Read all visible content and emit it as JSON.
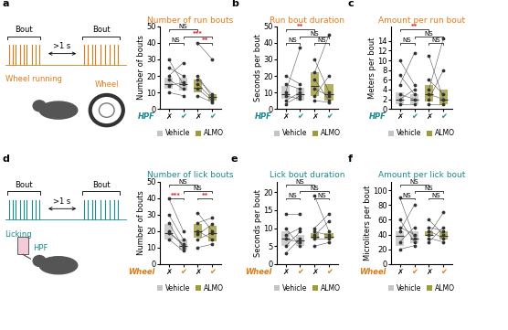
{
  "chart_data": [
    {
      "type": "box",
      "label": "a",
      "title": "Number of run bouts",
      "ylabel": "Number of bouts",
      "xlabel": "HPF",
      "categories": [
        "✗",
        "✔",
        "✗",
        "✔"
      ],
      "ylim": [
        0,
        50
      ],
      "yticks": [
        0,
        10,
        20,
        30,
        40,
        50
      ],
      "legend": "upper center",
      "series": [
        {
          "name": "Vehicle",
          "color": "#c4c4c4",
          "median": [
            15,
            15
          ],
          "q1": [
            12,
            11
          ],
          "q3": [
            19,
            19
          ],
          "pairs": [
            [
              25,
              20
            ],
            [
              30,
              15
            ],
            [
              18,
              12
            ],
            [
              14,
              16
            ],
            [
              10,
              8
            ],
            [
              20,
              28
            ]
          ]
        },
        {
          "name": "ALMO",
          "color": "#9e9b3a",
          "median": [
            13,
            7
          ],
          "q1": [
            10,
            5
          ],
          "q3": [
            18,
            9
          ],
          "pairs": [
            [
              40,
              30
            ],
            [
              20,
              7
            ],
            [
              15,
              6
            ],
            [
              12,
              5
            ],
            [
              8,
              4
            ],
            [
              18,
              9
            ]
          ]
        }
      ],
      "comparisons": [
        {
          "groups": [
            0,
            1
          ],
          "label": "NS"
        },
        {
          "groups": [
            2,
            3
          ],
          "label": "**"
        },
        {
          "groups": [
            1,
            3
          ],
          "label": "***"
        },
        {
          "groups": [
            0,
            2
          ],
          "label": "NS"
        }
      ],
      "schematic": {
        "bout": "Bout",
        "gap": ">1 s",
        "trace": "Wheel running",
        "icon": "Wheel"
      }
    },
    {
      "type": "box",
      "label": "b",
      "title": "Run bout duration",
      "ylabel": "Seconds per bout",
      "xlabel": "HPF",
      "categories": [
        "✗",
        "✔",
        "✗",
        "✔"
      ],
      "ylim": [
        0,
        50
      ],
      "yticks": [
        0,
        10,
        20,
        30,
        40,
        50
      ],
      "legend": "upper center",
      "series": [
        {
          "name": "Vehicle",
          "color": "#c4c4c4",
          "median": [
            9,
            9
          ],
          "q1": [
            6,
            5
          ],
          "q3": [
            14,
            13
          ],
          "pairs": [
            [
              5,
              10
            ],
            [
              10,
              37
            ],
            [
              15,
              12
            ],
            [
              8,
              6
            ],
            [
              20,
              15
            ],
            [
              3,
              8
            ]
          ]
        },
        {
          "name": "ALMO",
          "color": "#9e9b3a",
          "median": [
            14,
            9
          ],
          "q1": [
            8,
            5
          ],
          "q3": [
            22,
            15
          ],
          "pairs": [
            [
              22,
              45
            ],
            [
              30,
              10
            ],
            [
              12,
              8
            ],
            [
              8,
              20
            ],
            [
              18,
              5
            ],
            [
              5,
              4
            ]
          ]
        }
      ],
      "comparisons": [
        {
          "groups": [
            0,
            1
          ],
          "label": "NS"
        },
        {
          "groups": [
            2,
            3
          ],
          "label": "NS"
        },
        {
          "groups": [
            1,
            3
          ],
          "label": "NS"
        },
        {
          "groups": [
            0,
            2
          ],
          "label": "**"
        }
      ]
    },
    {
      "type": "box",
      "label": "c",
      "title": "Amount per run bout",
      "ylabel": "Meters per bout",
      "xlabel": "HPF",
      "categories": [
        "✗",
        "✔",
        "✗",
        "✔"
      ],
      "ylim": [
        0,
        17
      ],
      "yticks": [
        0,
        2,
        4,
        6,
        8,
        10,
        12,
        14
      ],
      "legend": "upper center",
      "series": [
        {
          "name": "Vehicle",
          "color": "#c4c4c4",
          "median": [
            2,
            2
          ],
          "q1": [
            1,
            1
          ],
          "q3": [
            3.5,
            3
          ],
          "pairs": [
            [
              2,
              4
            ],
            [
              5,
              11.5
            ],
            [
              7,
              3
            ],
            [
              3,
              2
            ],
            [
              1,
              1
            ],
            [
              10,
              5
            ]
          ]
        },
        {
          "name": "ALMO",
          "color": "#9e9b3a",
          "median": [
            3,
            2
          ],
          "q1": [
            1.5,
            1
          ],
          "q3": [
            5,
            4
          ],
          "pairs": [
            [
              4,
              14.5
            ],
            [
              6,
              3
            ],
            [
              11,
              2
            ],
            [
              3,
              2
            ],
            [
              2,
              8
            ],
            [
              1,
              1
            ]
          ]
        }
      ],
      "comparisons": [
        {
          "groups": [
            0,
            1
          ],
          "label": "NS"
        },
        {
          "groups": [
            2,
            3
          ],
          "label": "NS"
        },
        {
          "groups": [
            1,
            3
          ],
          "label": "NS"
        },
        {
          "groups": [
            0,
            2
          ],
          "label": "**"
        }
      ]
    },
    {
      "type": "box",
      "label": "d",
      "title": "Number of lick bouts",
      "ylabel": "Number of bouts",
      "xlabel": "Wheel",
      "categories": [
        "✗",
        "✔",
        "✗",
        "✔"
      ],
      "ylim": [
        0,
        50
      ],
      "yticks": [
        0,
        10,
        20,
        30,
        40,
        50
      ],
      "legend": "upper center",
      "series": [
        {
          "name": "Vehicle",
          "color": "#c4c4c4",
          "median": [
            19,
            11
          ],
          "q1": [
            15,
            8
          ],
          "q3": [
            24,
            15
          ],
          "pairs": [
            [
              30,
              15
            ],
            [
              25,
              10
            ],
            [
              20,
              11
            ],
            [
              15,
              8
            ],
            [
              40,
              20
            ],
            [
              19,
              12
            ]
          ]
        },
        {
          "name": "ALMO",
          "color": "#9e9b3a",
          "median": [
            20,
            19
          ],
          "q1": [
            16,
            14
          ],
          "q3": [
            24,
            23
          ],
          "pairs": [
            [
              31,
              20
            ],
            [
              25,
              28
            ],
            [
              20,
              15
            ],
            [
              15,
              19
            ],
            [
              10,
              12
            ],
            [
              18,
              24
            ]
          ]
        }
      ],
      "comparisons": [
        {
          "groups": [
            0,
            1
          ],
          "label": "***"
        },
        {
          "groups": [
            2,
            3
          ],
          "label": "**"
        },
        {
          "groups": [
            1,
            3
          ],
          "label": "NS"
        },
        {
          "groups": [
            0,
            2
          ],
          "label": "NS"
        }
      ],
      "schematic": {
        "bout": "Bout",
        "gap": ">1 s",
        "trace": "Licking",
        "icon": "HPF"
      }
    },
    {
      "type": "box",
      "label": "e",
      "title": "Lick bout duration",
      "ylabel": "Seconds per bout",
      "xlabel": "Wheel",
      "categories": [
        "✗",
        "✔",
        "✗",
        "✔"
      ],
      "ylim": [
        0,
        23
      ],
      "yticks": [
        0,
        5,
        10,
        15,
        20
      ],
      "legend": "upper center",
      "series": [
        {
          "name": "Vehicle",
          "color": "#c4c4c4",
          "median": [
            7,
            6.5
          ],
          "q1": [
            5,
            5
          ],
          "q3": [
            9,
            8
          ],
          "pairs": [
            [
              7,
              6
            ],
            [
              14,
              14
            ],
            [
              5,
              9
            ],
            [
              10,
              5
            ],
            [
              3,
              7
            ],
            [
              8,
              10
            ]
          ]
        },
        {
          "name": "ALMO",
          "color": "#9e9b3a",
          "median": [
            7.5,
            7.5
          ],
          "q1": [
            7,
            7
          ],
          "q3": [
            8.5,
            8.5
          ],
          "pairs": [
            [
              19,
              9
            ],
            [
              8,
              12
            ],
            [
              7,
              7
            ],
            [
              9,
              8
            ],
            [
              5,
              6
            ],
            [
              10,
              14
            ]
          ]
        }
      ],
      "comparisons": [
        {
          "groups": [
            0,
            1
          ],
          "label": "NS"
        },
        {
          "groups": [
            2,
            3
          ],
          "label": "NS"
        },
        {
          "groups": [
            1,
            3
          ],
          "label": "NS"
        },
        {
          "groups": [
            0,
            2
          ],
          "label": "NS"
        }
      ]
    },
    {
      "type": "box",
      "label": "f",
      "title": "Amount per lick bout",
      "ylabel": "Microliters per bout",
      "xlabel": "Wheel",
      "categories": [
        "✗",
        "✔",
        "✗",
        "✔"
      ],
      "ylim": [
        0,
        112
      ],
      "yticks": [
        0,
        20,
        40,
        60,
        80,
        100
      ],
      "legend": "upper center",
      "series": [
        {
          "name": "Vehicle",
          "color": "#c4c4c4",
          "median": [
            38,
            35
          ],
          "q1": [
            25,
            28
          ],
          "q3": [
            45,
            45
          ],
          "pairs": [
            [
              90,
              35
            ],
            [
              45,
              80
            ],
            [
              30,
              50
            ],
            [
              20,
              25
            ],
            [
              50,
              40
            ],
            [
              60,
              30
            ]
          ]
        },
        {
          "name": "ALMO",
          "color": "#9e9b3a",
          "median": [
            40,
            38
          ],
          "q1": [
            38,
            33
          ],
          "q3": [
            45,
            45
          ],
          "pairs": [
            [
              40,
              70
            ],
            [
              45,
              35
            ],
            [
              30,
              50
            ],
            [
              60,
              40
            ],
            [
              35,
              30
            ],
            [
              50,
              45
            ]
          ]
        }
      ],
      "comparisons": [
        {
          "groups": [
            0,
            1
          ],
          "label": "NS"
        },
        {
          "groups": [
            2,
            3
          ],
          "label": "NS"
        },
        {
          "groups": [
            1,
            3
          ],
          "label": "NS"
        },
        {
          "groups": [
            0,
            2
          ],
          "label": "NS"
        }
      ]
    }
  ]
}
